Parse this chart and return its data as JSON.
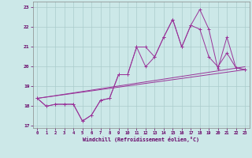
{
  "xlabel": "Windchill (Refroidissement éolien,°C)",
  "background_color": "#cce8e8",
  "grid_color": "#aacccc",
  "line_color": "#993399",
  "x_values": [
    0,
    1,
    2,
    3,
    4,
    5,
    6,
    7,
    8,
    9,
    10,
    11,
    12,
    13,
    14,
    15,
    16,
    17,
    18,
    19,
    20,
    21,
    22,
    23
  ],
  "line1": [
    18.4,
    18.0,
    18.1,
    18.1,
    18.1,
    17.25,
    17.55,
    18.3,
    18.4,
    19.6,
    19.6,
    21.0,
    21.0,
    20.5,
    21.5,
    22.4,
    21.0,
    22.1,
    22.9,
    21.9,
    19.9,
    21.5,
    19.95,
    19.85
  ],
  "line2": [
    18.4,
    18.0,
    18.1,
    18.1,
    18.1,
    17.25,
    17.55,
    18.3,
    18.4,
    19.6,
    19.6,
    21.0,
    20.0,
    20.5,
    21.5,
    22.4,
    21.0,
    22.1,
    21.9,
    20.5,
    20.0,
    20.7,
    19.95,
    19.85
  ],
  "line3_y": [
    18.4,
    19.85
  ],
  "line4_y": [
    18.4,
    20.0
  ],
  "line3_x": [
    0,
    23
  ],
  "line4_x": [
    0,
    23
  ],
  "ylim": [
    16.9,
    23.3
  ],
  "xlim": [
    -0.5,
    23.5
  ],
  "yticks": [
    17,
    18,
    19,
    20,
    21,
    22,
    23
  ],
  "xticks": [
    0,
    1,
    2,
    3,
    4,
    5,
    6,
    7,
    8,
    9,
    10,
    11,
    12,
    13,
    14,
    15,
    16,
    17,
    18,
    19,
    20,
    21,
    22,
    23
  ]
}
